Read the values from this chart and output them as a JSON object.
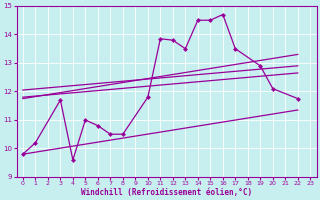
{
  "xlabel": "Windchill (Refroidissement éolien,°C)",
  "background_color": "#c8eff0",
  "grid_color": "#ffffff",
  "line_color": "#990099",
  "xlim": [
    -0.5,
    23.5
  ],
  "ylim": [
    9,
    15
  ],
  "xticks": [
    0,
    1,
    2,
    3,
    4,
    5,
    6,
    7,
    8,
    9,
    10,
    11,
    12,
    13,
    14,
    15,
    16,
    17,
    18,
    19,
    20,
    21,
    22,
    23
  ],
  "yticks": [
    9,
    10,
    11,
    12,
    13,
    14,
    15
  ],
  "main_line_x": [
    0,
    1,
    3,
    4,
    5,
    6,
    7,
    8,
    10,
    11,
    12,
    13,
    14,
    15,
    16,
    17,
    19,
    20,
    22
  ],
  "main_line_y": [
    9.8,
    10.2,
    11.7,
    9.6,
    11.0,
    10.8,
    10.5,
    10.5,
    11.8,
    13.85,
    13.8,
    13.5,
    14.5,
    14.5,
    14.7,
    13.5,
    12.9,
    12.1,
    11.75
  ],
  "upper_line_x": [
    0,
    22
  ],
  "upper_line_y": [
    11.75,
    13.3
  ],
  "lower_line_x": [
    0,
    22
  ],
  "lower_line_y": [
    9.8,
    11.35
  ],
  "mid_upper_line_x": [
    0,
    22
  ],
  "mid_upper_line_y": [
    12.05,
    12.9
  ],
  "mid_lower_line_x": [
    0,
    22
  ],
  "mid_lower_line_y": [
    11.8,
    12.65
  ],
  "xlabel_fontsize": 5.5,
  "tick_fontsize": 4.5
}
